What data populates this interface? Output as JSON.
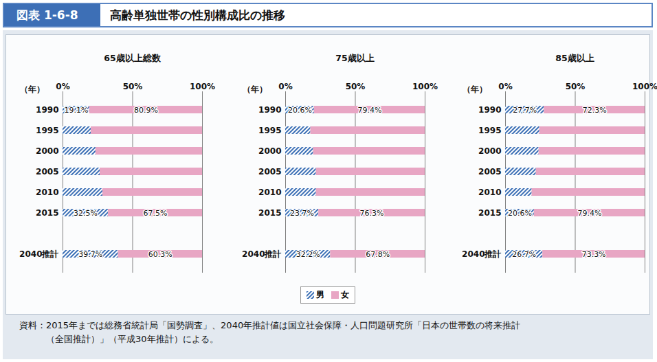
{
  "header": {
    "figure_number": "図表 1-6-8",
    "title": "高齢単独世帯の性別構成比の推移"
  },
  "chart_data": [
    {
      "type": "bar",
      "title": "65歳以上総数",
      "ylabel": "（年）",
      "orientation": "horizontal",
      "stacked": true,
      "data_labels": true,
      "grid": true,
      "legend": "bottom",
      "categories": [
        "1990",
        "1995",
        "2000",
        "2005",
        "2010",
        "2015",
        "2040推計"
      ],
      "xlim": [
        0,
        100
      ],
      "xticks": [
        {
          "value": 0,
          "label": "0%"
        },
        {
          "value": 50,
          "label": "50%"
        },
        {
          "value": 100,
          "label": "100%"
        }
      ],
      "series": [
        {
          "name": "男",
          "color": "#3b6fb5",
          "values": [
            19.1,
            20.2,
            23.6,
            26.6,
            28.6,
            32.5,
            39.7
          ],
          "value_labels": [
            "19.1%",
            null,
            null,
            null,
            null,
            "32.5%",
            "39.7%"
          ]
        },
        {
          "name": "女",
          "color": "#e8a6c4",
          "values": [
            80.9,
            79.8,
            76.4,
            73.4,
            71.4,
            67.5,
            60.3
          ],
          "value_labels": [
            "80.9%",
            null,
            null,
            null,
            null,
            "67.5%",
            "60.3%"
          ]
        }
      ]
    },
    {
      "type": "bar",
      "title": "75歳以上",
      "ylabel": "（年）",
      "orientation": "horizontal",
      "stacked": true,
      "data_labels": true,
      "grid": true,
      "legend": "bottom",
      "categories": [
        "1990",
        "1995",
        "2000",
        "2005",
        "2010",
        "2015",
        "2040推計"
      ],
      "xlim": [
        0,
        100
      ],
      "xticks": [
        {
          "value": 0,
          "label": "0%"
        },
        {
          "value": 50,
          "label": "50%"
        },
        {
          "value": 100,
          "label": "100%"
        }
      ],
      "series": [
        {
          "name": "男",
          "color": "#3b6fb5",
          "values": [
            20.6,
            18.0,
            20.0,
            22.0,
            22.0,
            23.7,
            32.2
          ],
          "value_labels": [
            "20.6%",
            null,
            null,
            null,
            null,
            "23.7%",
            "32.2%"
          ]
        },
        {
          "name": "女",
          "color": "#e8a6c4",
          "values": [
            79.4,
            82.0,
            80.0,
            78.0,
            78.0,
            76.3,
            67.8
          ],
          "value_labels": [
            "79.4%",
            null,
            null,
            null,
            null,
            "76.3%",
            "67.8%"
          ]
        }
      ]
    },
    {
      "type": "bar",
      "title": "85歳以上",
      "ylabel": "（年）",
      "orientation": "horizontal",
      "stacked": true,
      "data_labels": true,
      "grid": true,
      "legend": "bottom",
      "categories": [
        "1990",
        "1995",
        "2000",
        "2005",
        "2010",
        "2015",
        "2040推計"
      ],
      "xlim": [
        0,
        100
      ],
      "xticks": [
        {
          "value": 0,
          "label": "0%"
        },
        {
          "value": 50,
          "label": "50%"
        },
        {
          "value": 100,
          "label": "100%"
        }
      ],
      "series": [
        {
          "name": "男",
          "color": "#3b6fb5",
          "values": [
            27.7,
            24.5,
            24.0,
            22.0,
            19.0,
            20.6,
            26.7
          ],
          "value_labels": [
            "27.7%",
            null,
            null,
            null,
            null,
            "20.6%",
            "26.7%"
          ]
        },
        {
          "name": "女",
          "color": "#e8a6c4",
          "values": [
            72.3,
            75.5,
            76.0,
            78.0,
            81.0,
            79.4,
            73.3
          ],
          "value_labels": [
            "72.3%",
            null,
            null,
            null,
            null,
            "79.4%",
            "73.3%"
          ]
        }
      ]
    }
  ],
  "source": [
    "資料：2015年までは総務省統計局「国勢調査」、2040年推計値は国立社会保障・人口問題研究所「日本の世帯数の将来推計",
    "（全国推計）」（平成30年推計）による。"
  ]
}
